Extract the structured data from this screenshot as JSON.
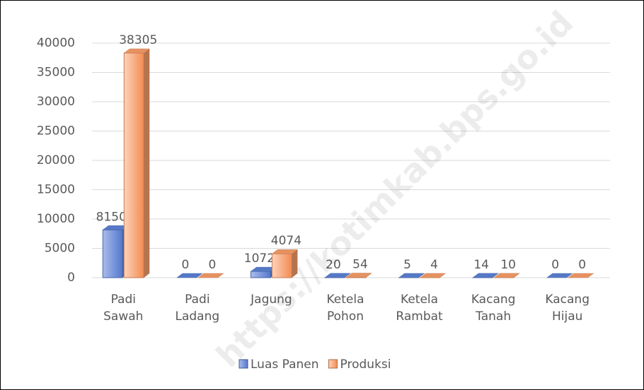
{
  "chart_data": {
    "type": "bar3d",
    "categories": [
      "Padi Sawah",
      "Padi Ladang",
      "Jagung",
      "Ketela Pohon",
      "Ketela Rambat",
      "Kacang Tanah",
      "Kacang Hijau"
    ],
    "series": [
      {
        "name": "Luas Panen",
        "color": "#5b7fd1",
        "values": [
          8150,
          0,
          1072,
          20,
          5,
          14,
          0
        ]
      },
      {
        "name": "Produksi",
        "color": "#f39a66",
        "values": [
          38305,
          0,
          4074,
          54,
          4,
          10,
          0
        ]
      }
    ],
    "ylim": [
      0,
      40000
    ],
    "yticks": [
      0,
      5000,
      10000,
      15000,
      20000,
      25000,
      30000,
      35000,
      40000
    ],
    "grid": true,
    "legend": "bottom",
    "watermark": "https://kotimkab.bps.go.id"
  }
}
